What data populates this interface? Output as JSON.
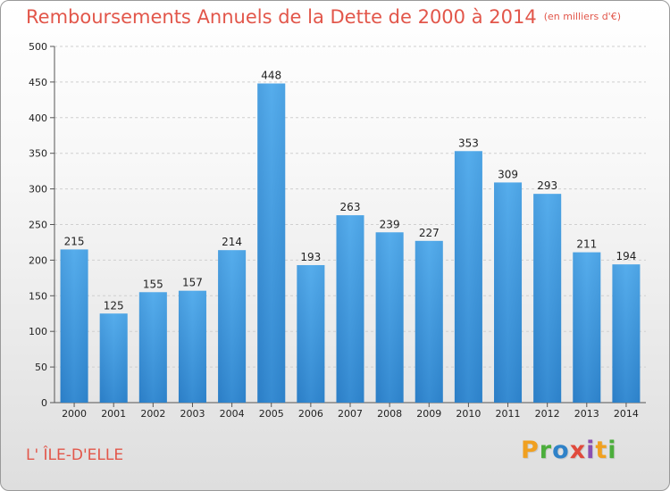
{
  "chart_data": {
    "type": "bar",
    "title": "Remboursements Annuels de la Dette de 2000 à 2014",
    "subtitle": "(en milliers d'€)",
    "categories": [
      "2000",
      "2001",
      "2002",
      "2003",
      "2004",
      "2005",
      "2006",
      "2007",
      "2008",
      "2009",
      "2010",
      "2011",
      "2012",
      "2013",
      "2014"
    ],
    "values": [
      215,
      125,
      155,
      157,
      214,
      448,
      193,
      263,
      239,
      227,
      353,
      309,
      293,
      211,
      194
    ],
    "yticks": [
      0,
      50,
      100,
      150,
      200,
      250,
      300,
      350,
      400,
      450,
      500
    ],
    "ylim": [
      0,
      500
    ],
    "grid": true,
    "bar_color": "#3d93d6",
    "xlabel": "",
    "ylabel": ""
  },
  "footer": {
    "commune": "L' ÎLE-D'ELLE",
    "logo_letters": [
      "P",
      "r",
      "o",
      "x",
      "i",
      "t",
      "i"
    ],
    "logo_colors": [
      "#f0a020",
      "#4cae3c",
      "#2f82c8",
      "#e04a3c",
      "#8a4fb0",
      "#f0a020",
      "#4cae3c"
    ]
  }
}
